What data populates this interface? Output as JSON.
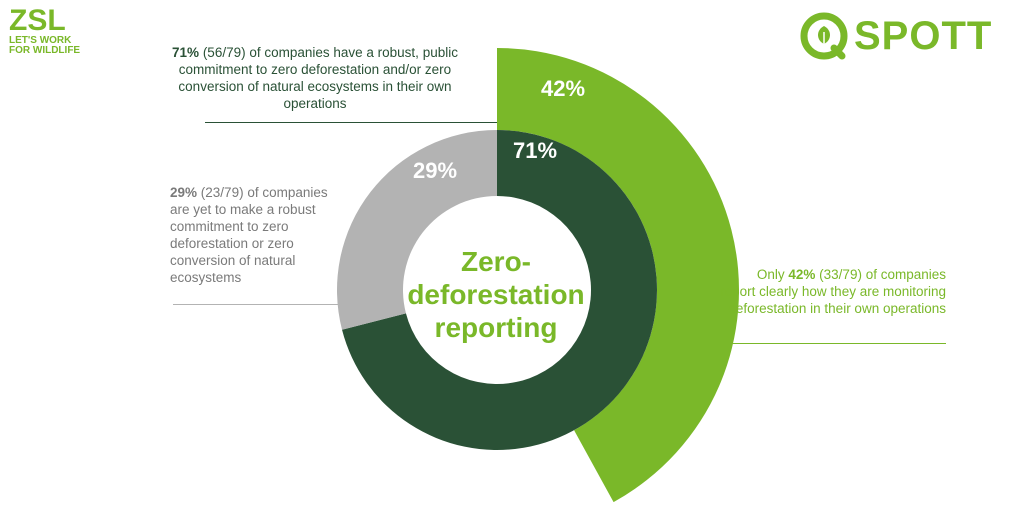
{
  "logos": {
    "zsl": {
      "name": "ZSL",
      "line1": "LET'S WORK",
      "line2": "FOR WILDLIFE"
    },
    "spott": {
      "name": "SPOTT",
      "icon": "leaf-in-circle-icon"
    }
  },
  "colors": {
    "dark_green": "#2a5136",
    "light_green": "#7ab829",
    "gray": "#b3b3b3"
  },
  "chart_data": {
    "type": "pie",
    "title": "Zero-deforestation reporting",
    "title_lines": [
      "Zero-",
      "deforestation",
      "reporting"
    ],
    "rings": [
      {
        "name": "inner",
        "slices": [
          {
            "label": "71%",
            "value": 71,
            "count": 56,
            "total": 79,
            "color": "#2a5136"
          },
          {
            "label": "29%",
            "value": 29,
            "count": 23,
            "total": 79,
            "color": "#b3b3b3"
          }
        ]
      },
      {
        "name": "outer",
        "slices": [
          {
            "label": "42%",
            "value": 42,
            "count": 33,
            "total": 79,
            "color": "#7ab829"
          }
        ]
      }
    ],
    "annotations": {
      "a71": {
        "pct": "71%",
        "text": "(56/79) of companies have a robust, public commitment to zero deforestation and/or zero conversion of natural ecosystems in their own operations"
      },
      "a29": {
        "pct": "29%",
        "text": "(23/79) of companies are yet to make a robust commitment to zero deforestation or zero conversion of natural ecosystems"
      },
      "a42": {
        "prefix": "Only",
        "pct": "42%",
        "text": "(33/79) of companies report clearly how they are monitoring deforestation in their own operations"
      }
    }
  }
}
